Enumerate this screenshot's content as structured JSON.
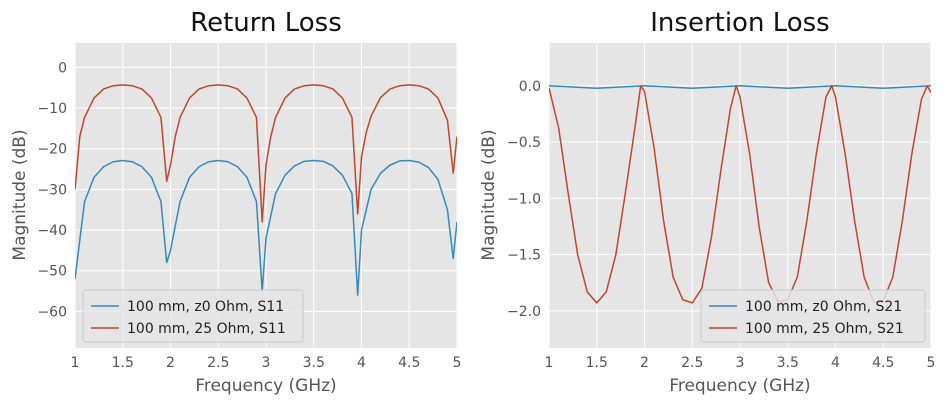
{
  "chart_data": [
    {
      "type": "line",
      "title": "Return Loss",
      "xlabel": "Frequency (GHz)",
      "ylabel": "Magnitude (dB)",
      "xlim": [
        1,
        5
      ],
      "ylim": [
        -69,
        6
      ],
      "grid": true,
      "legend_position": "bottom-left",
      "xticks": [
        1,
        1.5,
        2,
        2.5,
        3,
        3.5,
        4,
        4.5,
        5
      ],
      "xtick_labels": [
        "1",
        "1.5",
        "2",
        "2.5",
        "3",
        "3.5",
        "4",
        "4.5",
        "5"
      ],
      "yticks": [
        0,
        -10,
        -20,
        -30,
        -40,
        -50,
        -60
      ],
      "ytick_labels": [
        "0",
        "−10",
        "−20",
        "−30",
        "−40",
        "−50",
        "−60"
      ],
      "series": [
        {
          "name": "100 mm, z0 Ohm, S11",
          "color": "#348abd",
          "x": [
            1.0,
            1.1,
            1.2,
            1.3,
            1.4,
            1.5,
            1.6,
            1.7,
            1.8,
            1.9,
            1.96,
            2.0,
            2.1,
            2.2,
            2.3,
            2.4,
            2.5,
            2.6,
            2.7,
            2.8,
            2.9,
            2.96,
            3.0,
            3.1,
            3.2,
            3.3,
            3.4,
            3.5,
            3.6,
            3.7,
            3.8,
            3.9,
            3.96,
            4.0,
            4.1,
            4.2,
            4.3,
            4.4,
            4.5,
            4.6,
            4.7,
            4.8,
            4.9,
            4.96,
            5.0
          ],
          "y": [
            -52,
            -33,
            -27,
            -24.4,
            -23.2,
            -22.9,
            -23.2,
            -24.4,
            -27,
            -33,
            -48,
            -45,
            -33,
            -27,
            -24.4,
            -23.2,
            -22.9,
            -23.2,
            -24.4,
            -27,
            -33,
            -55,
            -42,
            -31,
            -26.5,
            -24.2,
            -23.1,
            -22.9,
            -23.1,
            -24.2,
            -26.5,
            -31,
            -56,
            -40,
            -30,
            -26,
            -24,
            -23,
            -22.9,
            -23.3,
            -24.6,
            -27.5,
            -35,
            -47,
            -38
          ]
        },
        {
          "name": "100 mm, 25 Ohm, S11",
          "color": "#c0462f",
          "x": [
            1.0,
            1.05,
            1.1,
            1.2,
            1.3,
            1.4,
            1.5,
            1.6,
            1.7,
            1.8,
            1.9,
            1.96,
            2.0,
            2.05,
            2.1,
            2.2,
            2.3,
            2.4,
            2.5,
            2.6,
            2.7,
            2.8,
            2.9,
            2.96,
            3.0,
            3.05,
            3.1,
            3.2,
            3.3,
            3.4,
            3.5,
            3.6,
            3.7,
            3.8,
            3.9,
            3.96,
            4.0,
            4.05,
            4.1,
            4.2,
            4.3,
            4.4,
            4.5,
            4.6,
            4.7,
            4.8,
            4.9,
            4.96,
            5.0
          ],
          "y": [
            -30,
            -17,
            -12.3,
            -7.5,
            -5.3,
            -4.5,
            -4.3,
            -4.5,
            -5.3,
            -7.5,
            -12.3,
            -28,
            -24,
            -17,
            -12.3,
            -7.5,
            -5.3,
            -4.5,
            -4.3,
            -4.5,
            -5.3,
            -7.5,
            -12.3,
            -38,
            -24,
            -17,
            -12.3,
            -7.5,
            -5.3,
            -4.5,
            -4.3,
            -4.5,
            -5.3,
            -7.5,
            -12.3,
            -36,
            -22,
            -16,
            -12,
            -7.4,
            -5.3,
            -4.5,
            -4.3,
            -4.5,
            -5.3,
            -7.5,
            -13,
            -26,
            -17
          ]
        }
      ]
    },
    {
      "type": "line",
      "title": "Insertion Loss",
      "xlabel": "Frequency (GHz)",
      "ylabel": "Magnitude (dB)",
      "xlim": [
        1,
        5
      ],
      "ylim": [
        -2.33,
        0.38
      ],
      "grid": true,
      "legend_position": "bottom-right",
      "xticks": [
        1,
        1.5,
        2,
        2.5,
        3,
        3.5,
        4,
        4.5,
        5
      ],
      "xtick_labels": [
        "1",
        "1.5",
        "2",
        "2.5",
        "3",
        "3.5",
        "4",
        "4.5",
        "5"
      ],
      "yticks": [
        0.0,
        -0.5,
        -1.0,
        -1.5,
        -2.0
      ],
      "ytick_labels": [
        "0.0",
        "−0.5",
        "−1.0",
        "−1.5",
        "−2.0"
      ],
      "series": [
        {
          "name": "100 mm, z0 Ohm, S21",
          "color": "#348abd",
          "x": [
            1.0,
            1.25,
            1.5,
            1.75,
            2.0,
            2.25,
            2.5,
            2.75,
            3.0,
            3.25,
            3.5,
            3.75,
            4.0,
            4.25,
            4.5,
            4.75,
            5.0
          ],
          "y": [
            0.0,
            -0.011,
            -0.022,
            -0.011,
            0.0,
            -0.011,
            -0.022,
            -0.011,
            0.0,
            -0.011,
            -0.022,
            -0.011,
            0.0,
            -0.011,
            -0.022,
            -0.011,
            0.0
          ]
        },
        {
          "name": "100 mm, 25 Ohm, S21",
          "color": "#c0462f",
          "x": [
            1.0,
            1.1,
            1.2,
            1.3,
            1.4,
            1.5,
            1.6,
            1.7,
            1.8,
            1.9,
            1.96,
            2.0,
            2.1,
            2.2,
            2.3,
            2.4,
            2.5,
            2.6,
            2.7,
            2.8,
            2.9,
            2.96,
            3.0,
            3.1,
            3.2,
            3.3,
            3.4,
            3.5,
            3.6,
            3.7,
            3.8,
            3.9,
            3.96,
            4.0,
            4.1,
            4.2,
            4.3,
            4.4,
            4.5,
            4.6,
            4.7,
            4.8,
            4.9,
            4.96,
            5.0
          ],
          "y": [
            -0.02,
            -0.37,
            -0.95,
            -1.5,
            -1.83,
            -1.93,
            -1.83,
            -1.5,
            -0.95,
            -0.37,
            0.0,
            -0.05,
            -0.55,
            -1.2,
            -1.7,
            -1.9,
            -1.93,
            -1.8,
            -1.35,
            -0.75,
            -0.2,
            0.0,
            -0.1,
            -0.6,
            -1.25,
            -1.75,
            -1.92,
            -1.9,
            -1.7,
            -1.2,
            -0.6,
            -0.1,
            0.0,
            -0.1,
            -0.6,
            -1.2,
            -1.7,
            -1.92,
            -1.91,
            -1.7,
            -1.2,
            -0.6,
            -0.12,
            0.0,
            -0.06
          ]
        }
      ]
    }
  ]
}
